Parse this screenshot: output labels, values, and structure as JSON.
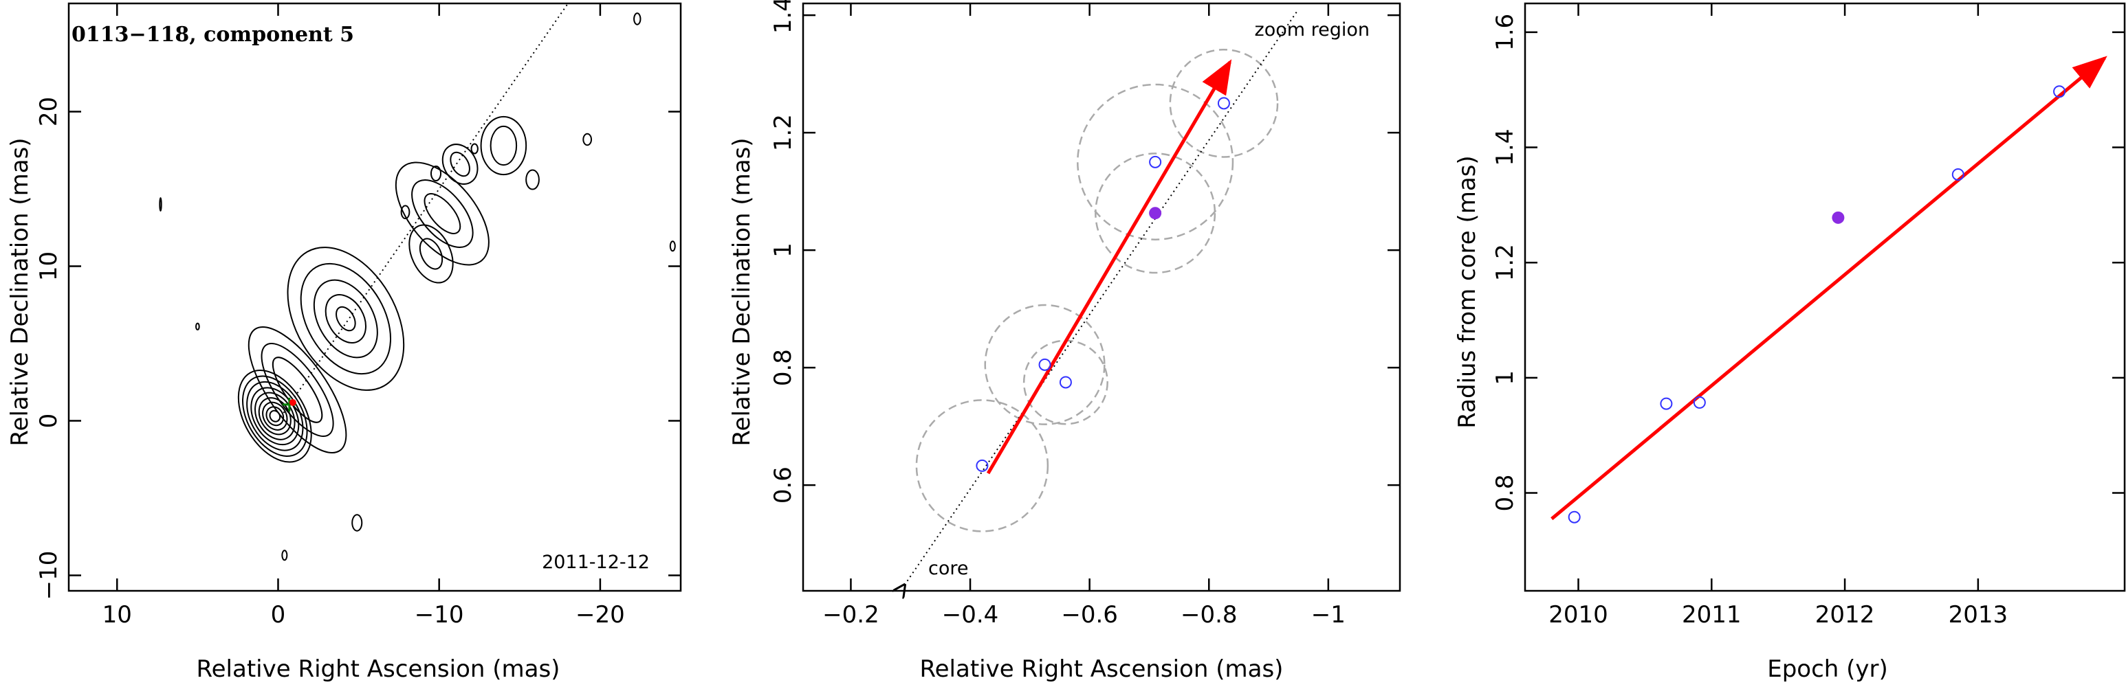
{
  "panels": [
    {
      "id": "contour-map",
      "title": "0113−118, component 5",
      "date": "2011-12-12",
      "xlabel": "Relative Right Ascension (mas)",
      "ylabel": "Relative Declination (mas)",
      "xlim": [
        13,
        -25
      ],
      "ylim": [
        -11,
        27
      ],
      "xticks": [
        10,
        0,
        -10,
        -20
      ],
      "xtick_labels": [
        "10",
        "0",
        "−10",
        "−20"
      ],
      "yticks": [
        -10,
        0,
        10,
        20
      ],
      "ytick_labels": [
        "−10",
        "0",
        "10",
        "20"
      ]
    },
    {
      "id": "zoom-region",
      "label_zoom": "zoom region",
      "label_core": "core",
      "xlabel": "Relative Right Ascension (mas)",
      "ylabel": "Relative Declination (mas)",
      "xlim": [
        -0.12,
        -1.12
      ],
      "ylim": [
        0.42,
        1.42
      ],
      "xticks": [
        -0.2,
        -0.4,
        -0.6,
        -0.8,
        -1.0
      ],
      "xtick_labels": [
        "−0.2",
        "−0.4",
        "−0.6",
        "−0.8",
        "−1"
      ],
      "yticks": [
        0.6,
        0.8,
        1.0,
        1.2,
        1.4
      ],
      "ytick_labels": [
        "0.6",
        "0.8",
        "1",
        "1.2",
        "1.4"
      ]
    },
    {
      "id": "radius-vs-epoch",
      "xlabel": "Epoch (yr)",
      "ylabel": "Radius from core (mas)",
      "xlim": [
        2009.6,
        2014.1
      ],
      "ylim": [
        0.63,
        1.65
      ],
      "xticks": [
        2010,
        2011,
        2012,
        2013
      ],
      "xtick_labels": [
        "2010",
        "2011",
        "2012",
        "2013"
      ],
      "yticks": [
        0.8,
        1.0,
        1.2,
        1.4,
        1.6
      ],
      "ytick_labels": [
        "0.8",
        "1",
        "1.2",
        "1.4",
        "1.6"
      ]
    }
  ],
  "chart_data": [
    {
      "type": "contour",
      "title": "0113−118, component 5",
      "xlabel": "Relative Right Ascension (mas)",
      "ylabel": "Relative Declination (mas)",
      "x_range": [
        13,
        -25
      ],
      "y_range": [
        -11,
        27
      ],
      "jet_direction_line": {
        "from": [
          0,
          0
        ],
        "to": [
          -18,
          27
        ]
      },
      "component_marker": [
        -0.7,
        1.05
      ],
      "colors": {
        "contours": "#000000",
        "component_marker": "#008000"
      }
    },
    {
      "type": "scatter",
      "xlabel": "Relative Right Ascension (mas)",
      "ylabel": "Relative Declination (mas)",
      "x_range": [
        -0.12,
        -1.12
      ],
      "y_range": [
        0.42,
        1.42
      ],
      "series": [
        {
          "marker": "open-circle",
          "x": [
            -0.42,
            -0.525,
            -0.56,
            -0.71,
            -0.825
          ],
          "y": [
            0.633,
            0.805,
            0.775,
            1.15,
            1.25
          ]
        },
        {
          "marker": "filled-circle",
          "x": [
            -0.71
          ],
          "y": [
            1.063
          ]
        }
      ],
      "uncertainty_circles": [
        {
          "x": -0.42,
          "y": 0.633,
          "r": 0.11
        },
        {
          "x": -0.525,
          "y": 0.805,
          "r": 0.1
        },
        {
          "x": -0.56,
          "y": 0.775,
          "r": 0.07
        },
        {
          "x": -0.71,
          "y": 1.15,
          "r": 0.13
        },
        {
          "x": -0.825,
          "y": 1.25,
          "r": 0.09
        },
        {
          "x": -0.71,
          "y": 1.063,
          "r": 0.1
        }
      ],
      "fit_arrow": {
        "from": [
          -0.43,
          0.62
        ],
        "to": [
          -0.835,
          1.32
        ]
      },
      "dotted_line": {
        "from": [
          -0.29,
          0.43
        ],
        "to": [
          -0.95,
          1.41
        ]
      },
      "colors": {
        "points": "#3333ff",
        "filled": "#8a2be2",
        "arrow": "#ff0000",
        "circles": "#aaaaaa"
      }
    },
    {
      "type": "scatter",
      "xlabel": "Epoch (yr)",
      "ylabel": "Radius from core (mas)",
      "x_range": [
        2009.6,
        2014.1
      ],
      "y_range": [
        0.63,
        1.65
      ],
      "series": [
        {
          "marker": "open-circle",
          "x": [
            2009.97,
            2010.66,
            2010.91,
            2012.85,
            2013.61
          ],
          "y": [
            0.758,
            0.955,
            0.957,
            1.353,
            1.497
          ]
        },
        {
          "marker": "filled-circle",
          "x": [
            2011.95
          ],
          "y": [
            1.278
          ]
        }
      ],
      "fit_arrow": {
        "from": [
          2009.8,
          0.755
        ],
        "to": [
          2013.95,
          1.555
        ]
      },
      "colors": {
        "points": "#3333ff",
        "filled": "#8a2be2",
        "arrow": "#ff0000"
      }
    }
  ]
}
